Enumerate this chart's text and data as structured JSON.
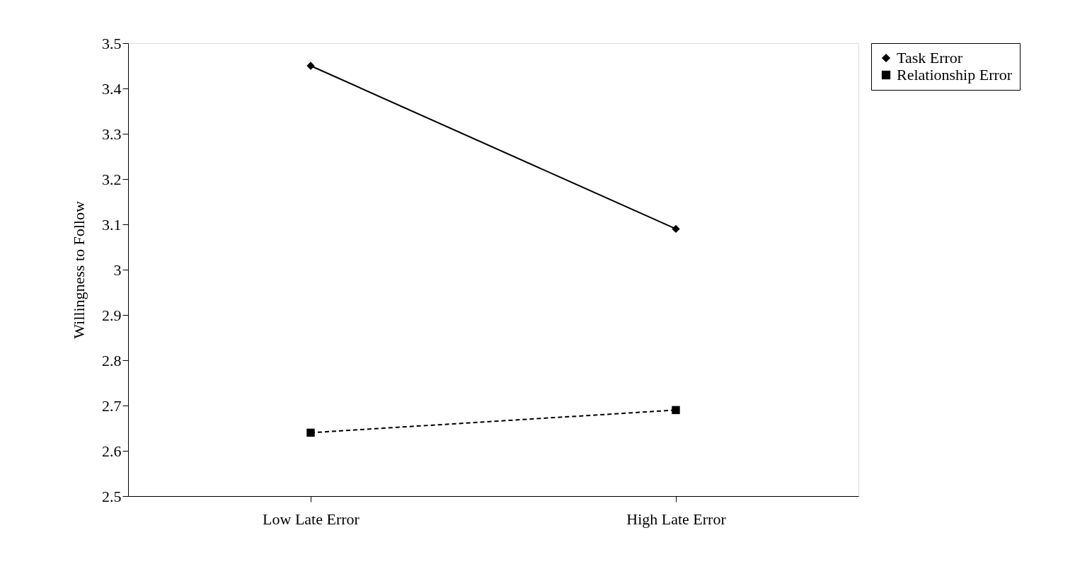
{
  "chart_data": {
    "type": "line",
    "ylabel": "Willingness to Follow",
    "categories": [
      "Low Late Error",
      "High Late Error"
    ],
    "series": [
      {
        "name": "Task Error",
        "color": "#000000",
        "values": [
          3.45,
          3.09
        ],
        "marker": "diamond",
        "line_style": "solid"
      },
      {
        "name": "Relationship Error",
        "color": "#000000",
        "values": [
          2.64,
          2.69
        ],
        "marker": "square",
        "line_style": "dashed"
      }
    ],
    "ylim": [
      2.5,
      3.5
    ],
    "yticks": [
      2.5,
      2.6,
      2.7,
      2.8,
      2.9,
      3,
      3.1,
      3.2,
      3.3,
      3.4,
      3.5
    ],
    "grid": false,
    "legend": "right"
  }
}
